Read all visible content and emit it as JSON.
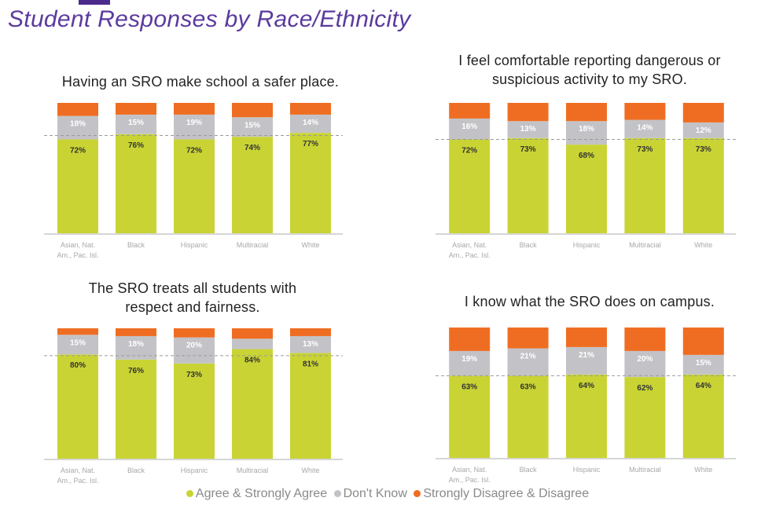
{
  "header": {
    "subtitle": "Student Responses by Race/Ethnicity"
  },
  "colors": {
    "agree": "#c9d434",
    "dont_know": "#c3c3c7",
    "disagree": "#ef6d22",
    "axis": "#c8c8c8",
    "dash": "#9a9a9a",
    "label": "#333333",
    "tick": "#a8a8a8"
  },
  "legend": {
    "agree": "Agree & Strongly Agree",
    "dont_know": "Don't Know",
    "disagree": "Strongly Disagree & Disagree"
  },
  "chart_data": [
    {
      "type": "bar",
      "stacked": true,
      "title_lines": [
        "Having an SRO make school a safer place."
      ],
      "categories": [
        "Asian, Nat. Am., Pac. Isl.",
        "Black",
        "Hispanic",
        "Multiracial",
        "White"
      ],
      "tick_lines": [
        [
          "Asian, Nat.",
          "Am., Pac. Isl."
        ],
        [
          "Black"
        ],
        [
          "Hispanic"
        ],
        [
          "Multiracial"
        ],
        [
          "White"
        ]
      ],
      "series": [
        {
          "name": "Agree & Strongly Agree",
          "values": [
            72,
            76,
            72,
            74,
            77
          ],
          "labels": [
            "72%",
            "76%",
            "72%",
            "74%",
            "77%"
          ]
        },
        {
          "name": "Don't Know",
          "values": [
            18,
            15,
            19,
            15,
            14
          ],
          "labels": [
            "18%",
            "15%",
            "19%",
            "15%",
            "14%"
          ]
        },
        {
          "name": "Strongly Disagree & Disagree",
          "values": [
            10,
            9,
            9,
            11,
            9
          ]
        }
      ],
      "reference_line": 75,
      "ylim": [
        0,
        100
      ]
    },
    {
      "type": "bar",
      "stacked": true,
      "title_lines": [
        "I feel comfortable reporting dangerous or",
        "suspicious activity to my SRO."
      ],
      "categories": [
        "Asian, Nat. Am., Pac. Isl.",
        "Black",
        "Hispanic",
        "Multiracial",
        "White"
      ],
      "tick_lines": [
        [
          "Asian, Nat.",
          "Am., Pac. Isl."
        ],
        [
          "Black"
        ],
        [
          "Hispanic"
        ],
        [
          "Multiracial"
        ],
        [
          "White"
        ]
      ],
      "series": [
        {
          "name": "Agree & Strongly Agree",
          "values": [
            72,
            73,
            68,
            73,
            73
          ],
          "labels": [
            "72%",
            "73%",
            "68%",
            "73%",
            "73%"
          ]
        },
        {
          "name": "Don't Know",
          "values": [
            16,
            13,
            18,
            14,
            12
          ],
          "labels": [
            "16%",
            "13%",
            "18%",
            "14%",
            "12%"
          ]
        },
        {
          "name": "Strongly Disagree & Disagree",
          "values": [
            12,
            14,
            14,
            13,
            15
          ]
        }
      ],
      "reference_line": 72,
      "ylim": [
        0,
        100
      ]
    },
    {
      "type": "bar",
      "stacked": true,
      "title_lines": [
        "The SRO treats all students with",
        "respect and fairness."
      ],
      "categories": [
        "Asian, Nat. Am., Pac. Isl.",
        "Black",
        "Hispanic",
        "Multiracial",
        "White"
      ],
      "tick_lines": [
        [
          "Asian, Nat.",
          "Am., Pac. Isl."
        ],
        [
          "Black"
        ],
        [
          "Hispanic"
        ],
        [
          "Multiracial"
        ],
        [
          "White"
        ]
      ],
      "series": [
        {
          "name": "Agree & Strongly Agree",
          "values": [
            80,
            76,
            73,
            84,
            81
          ],
          "labels": [
            "80%",
            "76%",
            "73%",
            "84%",
            "81%"
          ]
        },
        {
          "name": "Don't Know",
          "values": [
            15,
            18,
            20,
            8,
            13
          ],
          "labels": [
            "15%",
            "18%",
            "20%",
            "",
            "13%"
          ]
        },
        {
          "name": "Strongly Disagree & Disagree",
          "values": [
            5,
            6,
            7,
            8,
            6
          ]
        }
      ],
      "reference_line": 79,
      "ylim": [
        0,
        100
      ]
    },
    {
      "type": "bar",
      "stacked": true,
      "title_lines": [
        "I know what the SRO does on campus."
      ],
      "categories": [
        "Asian, Nat. Am., Pac. Isl.",
        "Black",
        "Hispanic",
        "Multiracial",
        "White"
      ],
      "tick_lines": [
        [
          "Asian, Nat.",
          "Am., Pac. Isl."
        ],
        [
          "Black"
        ],
        [
          "Hispanic"
        ],
        [
          "Multiracial"
        ],
        [
          "White"
        ]
      ],
      "series": [
        {
          "name": "Agree & Strongly Agree",
          "values": [
            63,
            63,
            64,
            62,
            64
          ],
          "labels": [
            "63%",
            "63%",
            "64%",
            "62%",
            "64%"
          ]
        },
        {
          "name": "Don't Know",
          "values": [
            19,
            21,
            21,
            20,
            15
          ],
          "labels": [
            "19%",
            "21%",
            "21%",
            "20%",
            "15%"
          ]
        },
        {
          "name": "Strongly Disagree & Disagree",
          "values": [
            18,
            16,
            15,
            18,
            21
          ]
        }
      ],
      "reference_line": 63,
      "ylim": [
        0,
        100
      ]
    }
  ]
}
